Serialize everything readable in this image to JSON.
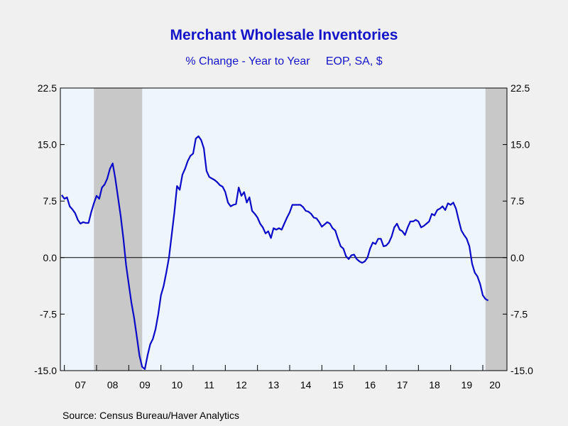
{
  "chart_data": {
    "type": "line",
    "title": "Merchant Wholesale Inventories",
    "subtitle": "% Change - Year to Year     EOP, SA, $",
    "source": "Source:  Census Bureau/Haver Analytics",
    "ylim": [
      -15,
      22.5
    ],
    "y_ticks": [
      "22.5",
      "15.0",
      "7.5",
      "0.0",
      "-7.5",
      "-15.0"
    ],
    "y_tick_values": [
      22.5,
      15,
      7.5,
      0,
      -7.5,
      -15
    ],
    "x_range": [
      2006.875,
      2020.75
    ],
    "x_tick_labels": [
      "07",
      "08",
      "09",
      "10",
      "11",
      "12",
      "13",
      "14",
      "15",
      "16",
      "17",
      "18",
      "19",
      "20"
    ],
    "recessions": [
      [
        2007.917,
        2009.417
      ],
      [
        2020.083,
        2020.75
      ]
    ],
    "zero_line": true,
    "colors": {
      "line": "#0a0ac8",
      "recession": "#c8c8c8",
      "plot_bg": "#eef5fc",
      "text": "#1414c8"
    },
    "series": [
      {
        "x_start": "2006-12",
        "frequency": "monthly",
        "values": [
          8.3,
          7.8,
          8.0,
          6.8,
          6.4,
          5.9,
          5.0,
          4.5,
          4.7,
          4.6,
          4.6,
          6.0,
          7.2,
          8.2,
          7.8,
          9.3,
          9.7,
          10.5,
          11.8,
          12.5,
          10.5,
          8.0,
          5.5,
          2.5,
          -1.0,
          -3.5,
          -6.0,
          -8.0,
          -10.5,
          -13.0,
          -14.5,
          -14.8,
          -13.0,
          -11.5,
          -10.8,
          -9.5,
          -7.5,
          -5.0,
          -3.8,
          -2.0,
          0.0,
          3.0,
          6.0,
          9.5,
          9.0,
          11.0,
          11.8,
          12.8,
          13.5,
          13.8,
          15.8,
          16.1,
          15.6,
          14.5,
          11.5,
          10.7,
          10.5,
          10.3,
          10.0,
          9.6,
          9.4,
          8.7,
          7.3,
          6.8,
          7.0,
          7.1,
          9.3,
          8.2,
          8.7,
          7.3,
          8.0,
          6.2,
          5.8,
          5.3,
          4.5,
          4.0,
          3.2,
          3.5,
          2.6,
          3.9,
          3.7,
          3.9,
          3.7,
          4.5,
          5.3,
          6.0,
          7.0,
          7.0,
          7.0,
          7.0,
          6.7,
          6.2,
          6.1,
          5.8,
          5.3,
          5.2,
          4.7,
          4.1,
          4.4,
          4.7,
          4.5,
          3.9,
          3.6,
          2.5,
          1.5,
          1.2,
          0.2,
          -0.2,
          0.3,
          0.4,
          -0.2,
          -0.5,
          -0.7,
          -0.5,
          0.0,
          1.2,
          2.0,
          1.8,
          2.5,
          2.5,
          1.5,
          1.6,
          2.0,
          2.8,
          4.0,
          4.5,
          3.7,
          3.5,
          3.0,
          4.0,
          4.8,
          4.8,
          5.0,
          4.8,
          4.0,
          4.2,
          4.5,
          4.8,
          5.8,
          5.6,
          6.3,
          6.5,
          6.8,
          6.3,
          7.2,
          7.0,
          7.3,
          6.5,
          5.0,
          3.6,
          3.0,
          2.5,
          1.5,
          -0.8,
          -2.0,
          -2.5,
          -3.5,
          -5.0,
          -5.5,
          -5.7
        ]
      }
    ]
  }
}
